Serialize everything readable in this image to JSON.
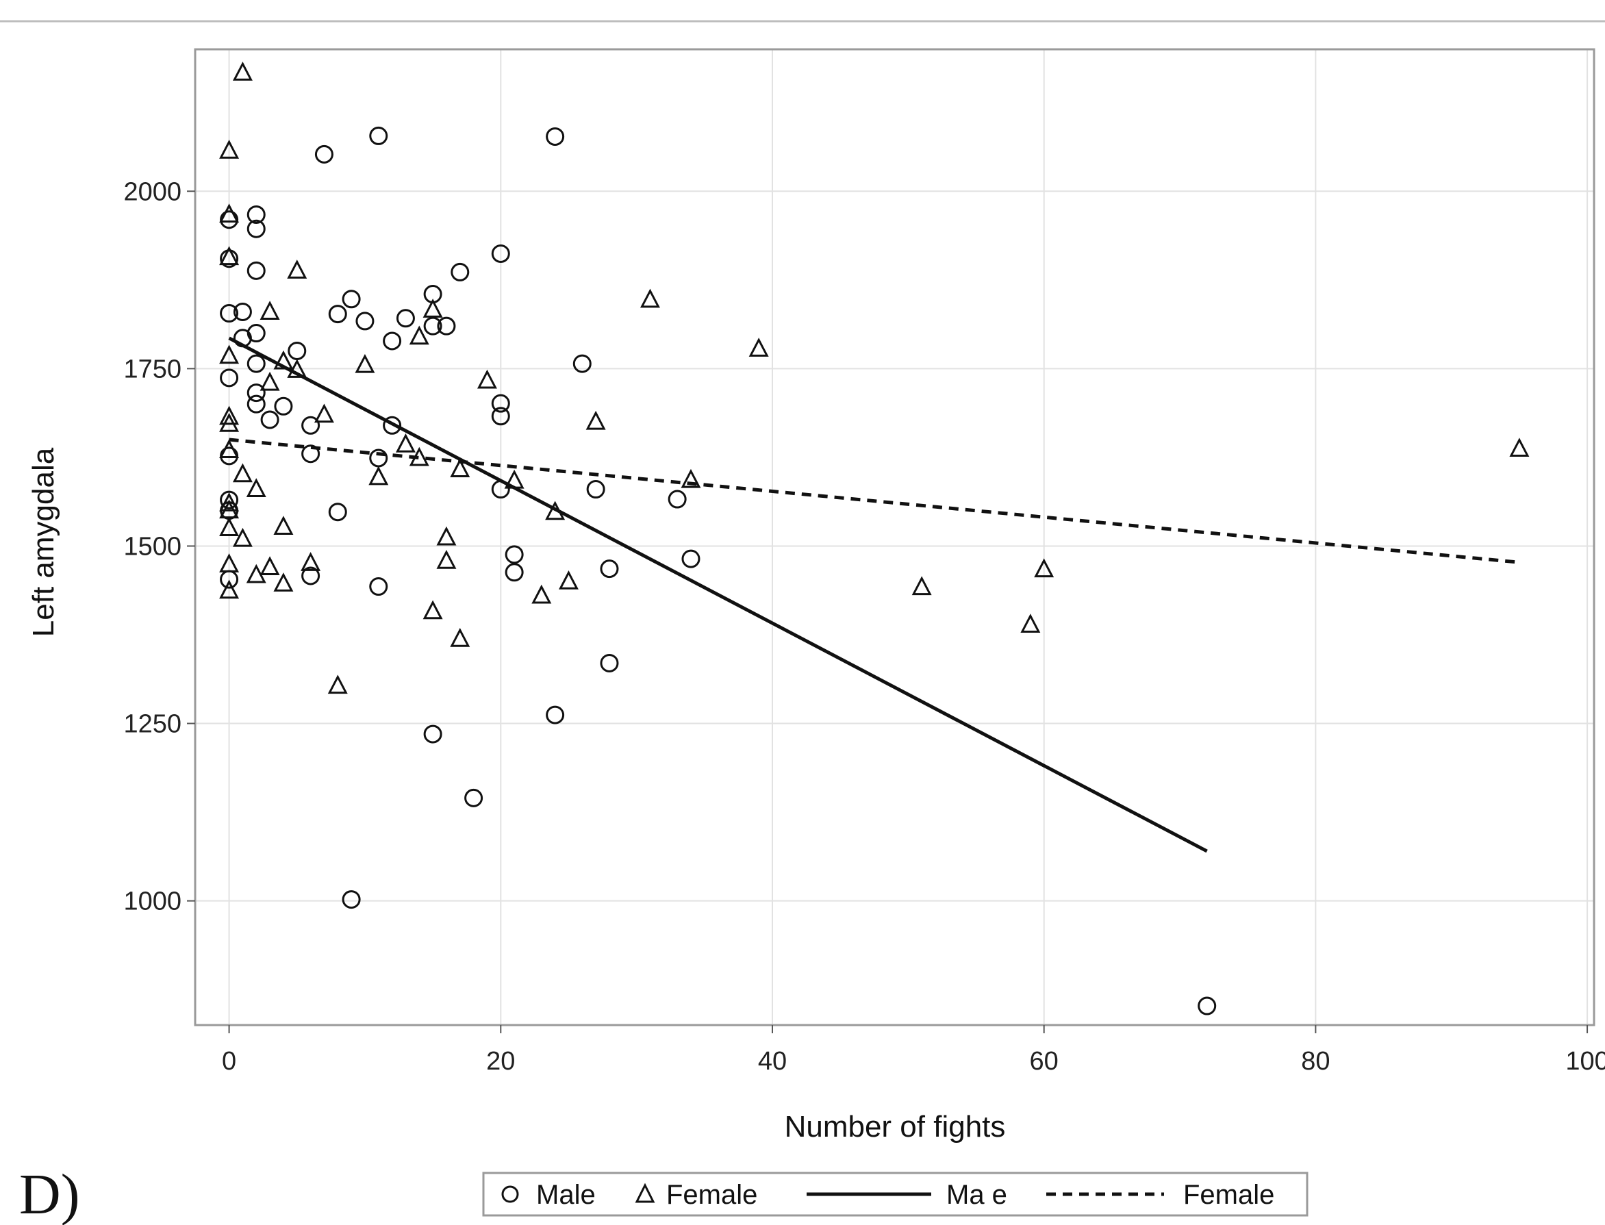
{
  "panel_label": "D)",
  "chart_data": {
    "type": "scatter",
    "xlabel": "Number of fights",
    "ylabel": "Left amygdala",
    "xlim": [
      -2.5,
      100.5
    ],
    "ylim": [
      825,
      2200
    ],
    "x_ticks": [
      0,
      20,
      40,
      60,
      80,
      100
    ],
    "y_ticks": [
      1000,
      1250,
      1500,
      1750,
      2000
    ],
    "grid": true,
    "legend_position": "bottom-center",
    "series": [
      {
        "name": "Male",
        "marker": "circle",
        "color": "#111111",
        "points": [
          [
            0,
            1960
          ],
          [
            0,
            1905
          ],
          [
            0,
            1828
          ],
          [
            0,
            1737
          ],
          [
            0,
            1627
          ],
          [
            0,
            1565
          ],
          [
            0,
            1550
          ],
          [
            0,
            1453
          ],
          [
            1,
            1830
          ],
          [
            1,
            1793
          ],
          [
            2,
            1967
          ],
          [
            2,
            1947
          ],
          [
            2,
            1888
          ],
          [
            2,
            1800
          ],
          [
            2,
            1757
          ],
          [
            2,
            1716
          ],
          [
            2,
            1700
          ],
          [
            3,
            1678
          ],
          [
            4,
            1697
          ],
          [
            5,
            1775
          ],
          [
            6,
            1670
          ],
          [
            6,
            1630
          ],
          [
            6,
            1458
          ],
          [
            7,
            2052
          ],
          [
            8,
            1827
          ],
          [
            8,
            1548
          ],
          [
            9,
            1848
          ],
          [
            9,
            1002
          ],
          [
            10,
            1817
          ],
          [
            11,
            2078
          ],
          [
            11,
            1624
          ],
          [
            11,
            1443
          ],
          [
            12,
            1789
          ],
          [
            12,
            1670
          ],
          [
            13,
            1821
          ],
          [
            15,
            1855
          ],
          [
            15,
            1810
          ],
          [
            15,
            1235
          ],
          [
            16,
            1810
          ],
          [
            17,
            1886
          ],
          [
            18,
            1145
          ],
          [
            20,
            1912
          ],
          [
            20,
            1701
          ],
          [
            20,
            1683
          ],
          [
            20,
            1580
          ],
          [
            21,
            1488
          ],
          [
            21,
            1463
          ],
          [
            24,
            2077
          ],
          [
            24,
            1262
          ],
          [
            26,
            1757
          ],
          [
            27,
            1580
          ],
          [
            28,
            1468
          ],
          [
            28,
            1335
          ],
          [
            33,
            1566
          ],
          [
            34,
            1482
          ],
          [
            72,
            852
          ]
        ]
      },
      {
        "name": "Female",
        "marker": "triangle",
        "color": "#111111",
        "points": [
          [
            1,
            2167
          ],
          [
            0,
            2057
          ],
          [
            0,
            1967
          ],
          [
            0,
            1907
          ],
          [
            0,
            1768
          ],
          [
            0,
            1682
          ],
          [
            0,
            1672
          ],
          [
            0,
            1635
          ],
          [
            0,
            1560
          ],
          [
            0,
            1550
          ],
          [
            0,
            1525
          ],
          [
            0,
            1474
          ],
          [
            0,
            1437
          ],
          [
            1,
            1601
          ],
          [
            1,
            1510
          ],
          [
            2,
            1580
          ],
          [
            2,
            1459
          ],
          [
            3,
            1830
          ],
          [
            3,
            1730
          ],
          [
            3,
            1470
          ],
          [
            4,
            1760
          ],
          [
            4,
            1527
          ],
          [
            4,
            1447
          ],
          [
            5,
            1888
          ],
          [
            5,
            1748
          ],
          [
            6,
            1476
          ],
          [
            7,
            1685
          ],
          [
            8,
            1303
          ],
          [
            10,
            1755
          ],
          [
            11,
            1597
          ],
          [
            13,
            1643
          ],
          [
            14,
            1795
          ],
          [
            14,
            1624
          ],
          [
            15,
            1833
          ],
          [
            15,
            1408
          ],
          [
            16,
            1512
          ],
          [
            16,
            1479
          ],
          [
            17,
            1608
          ],
          [
            17,
            1369
          ],
          [
            19,
            1733
          ],
          [
            21,
            1592
          ],
          [
            23,
            1430
          ],
          [
            24,
            1548
          ],
          [
            25,
            1450
          ],
          [
            27,
            1675
          ],
          [
            31,
            1847
          ],
          [
            34,
            1593
          ],
          [
            39,
            1778
          ],
          [
            51,
            1442
          ],
          [
            59,
            1389
          ],
          [
            60,
            1467
          ],
          [
            95,
            1637
          ]
        ]
      }
    ],
    "fit_lines": [
      {
        "name": "Male",
        "style": "solid",
        "color": "#111111",
        "x": [
          0,
          72
        ],
        "y": [
          1793,
          1070
        ]
      },
      {
        "name": "Female",
        "style": "dashed",
        "color": "#111111",
        "x": [
          0,
          95
        ],
        "y": [
          1650,
          1477
        ]
      }
    ],
    "legend": [
      {
        "label": "Male",
        "symbol": "circle"
      },
      {
        "label": "Female",
        "symbol": "triangle"
      },
      {
        "label": "Ma e",
        "symbol": "solid-line"
      },
      {
        "label": "Female",
        "symbol": "dashed-line"
      }
    ]
  }
}
